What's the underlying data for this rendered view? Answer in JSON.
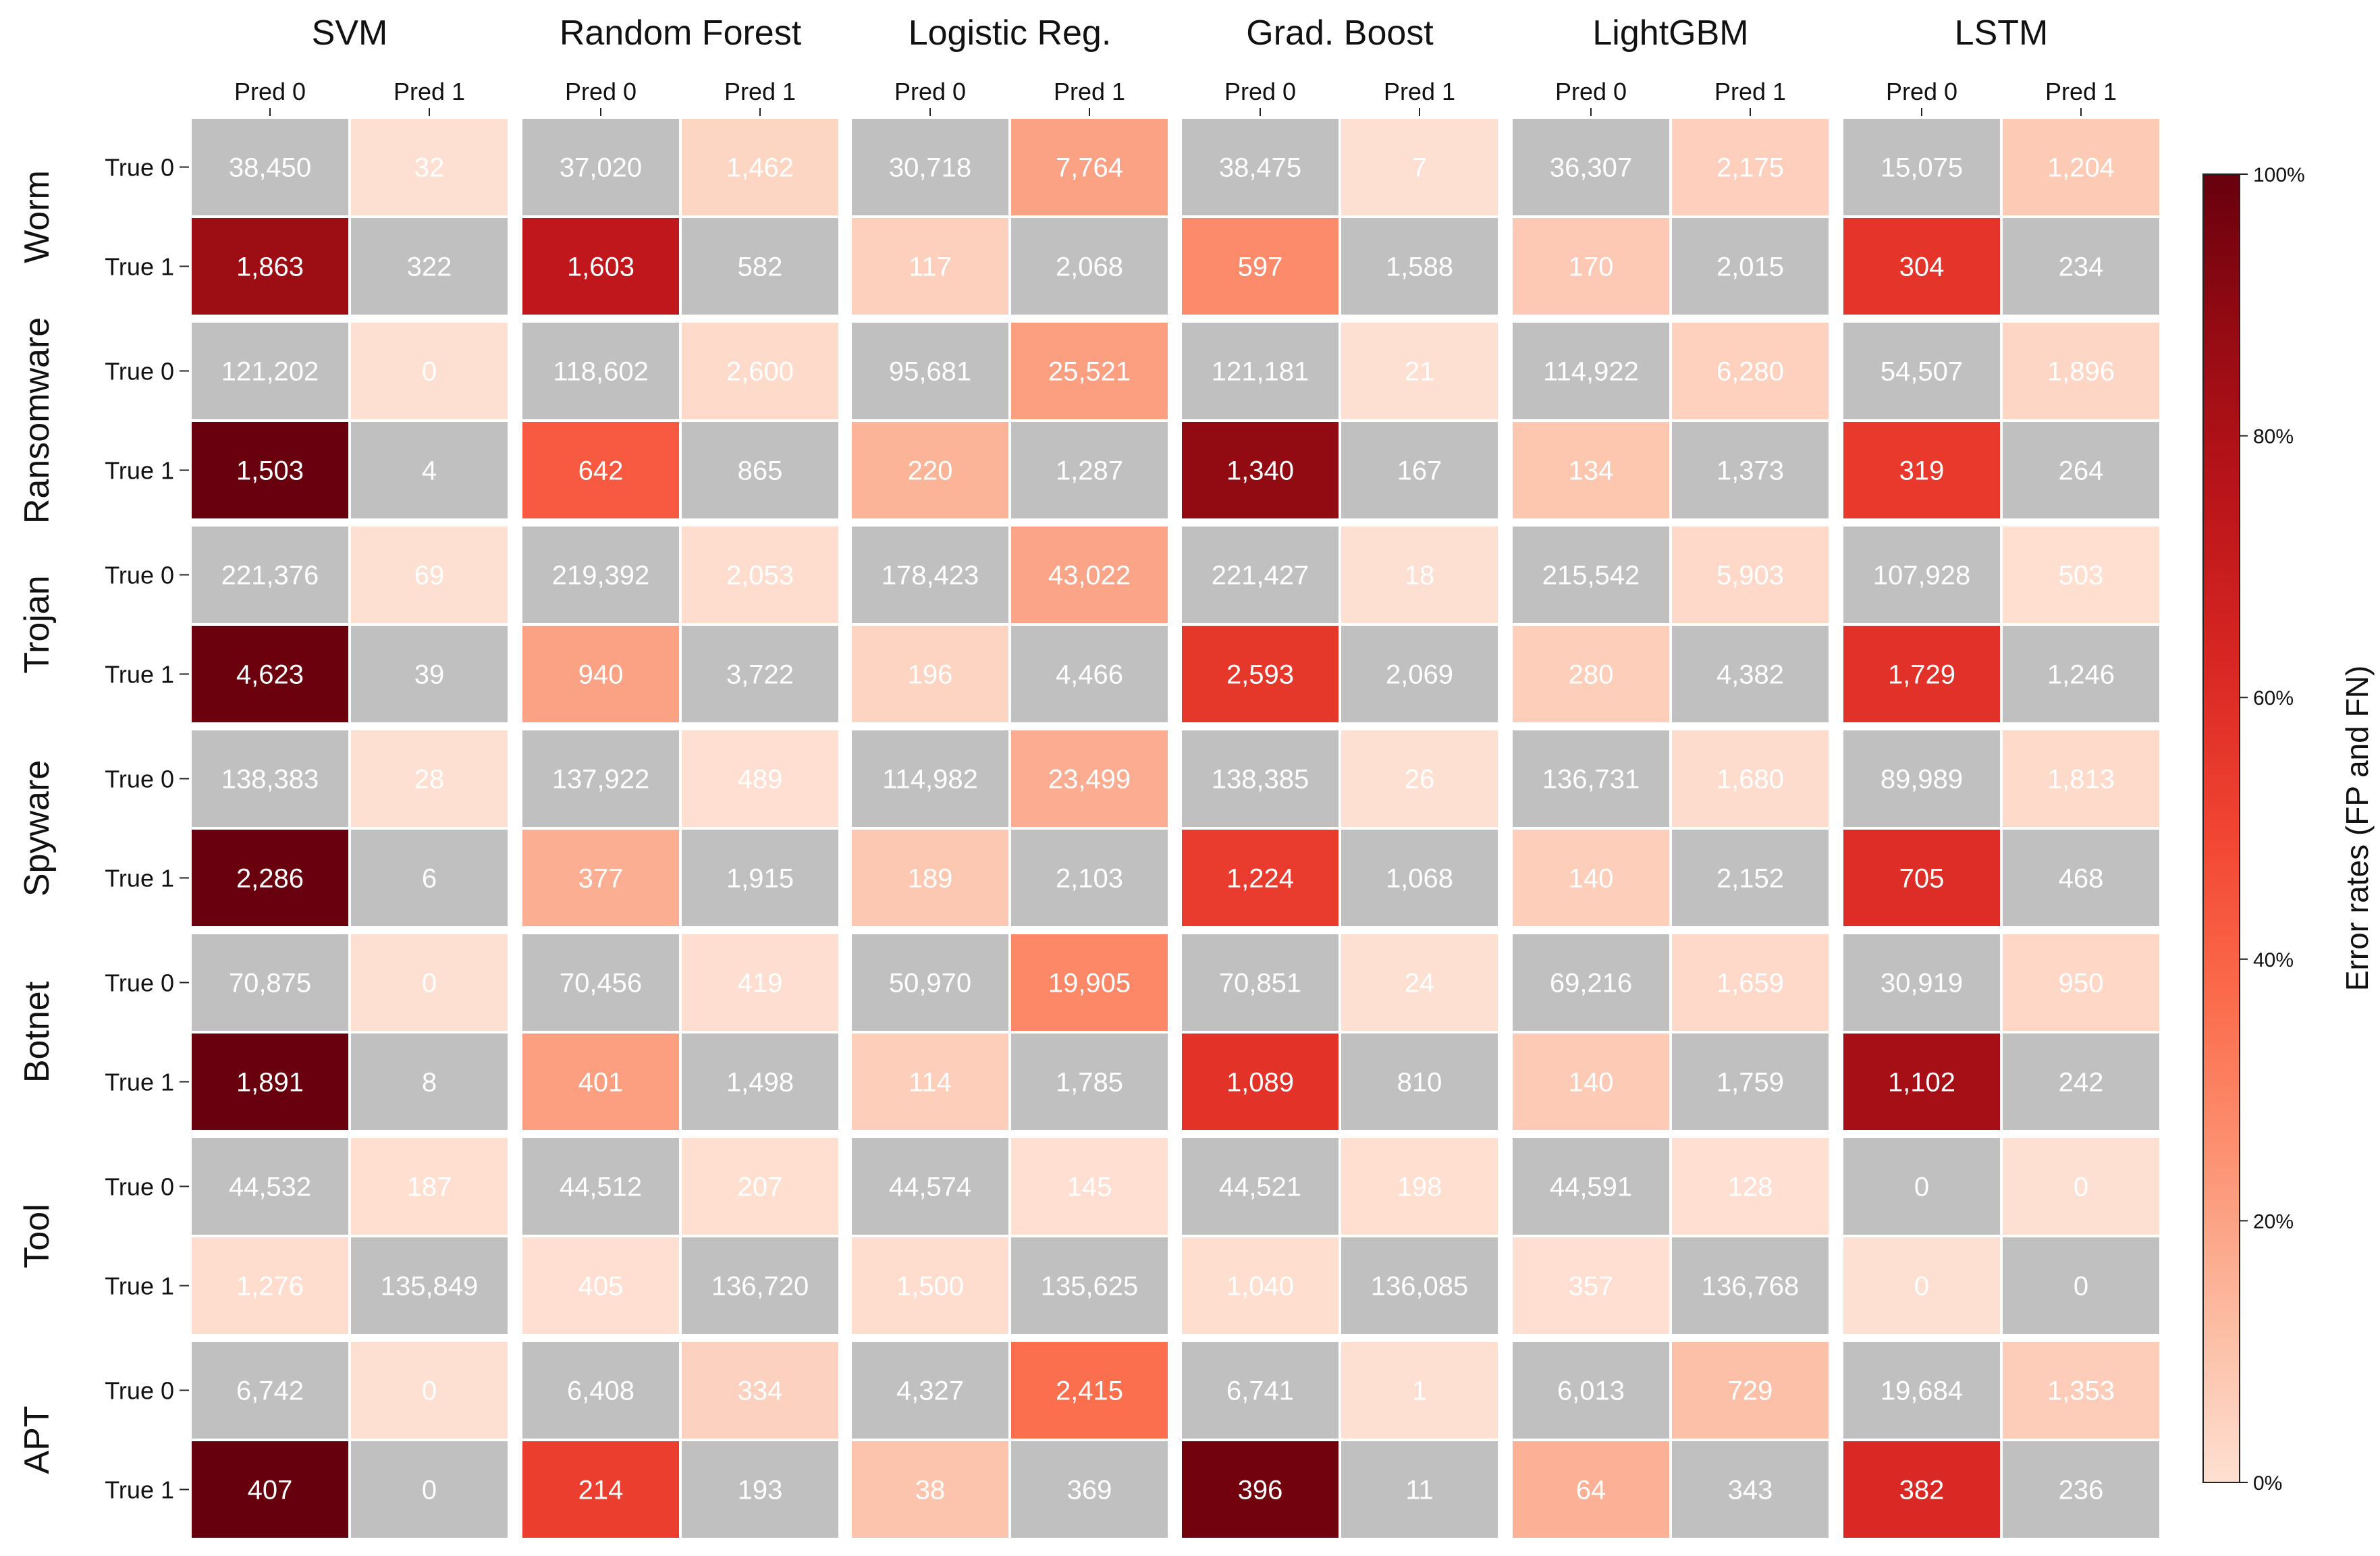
{
  "chart_data": {
    "type": "heatmap",
    "models": [
      "SVM",
      "Random Forest",
      "Logistic Reg.",
      "Grad. Boost",
      "LightGBM",
      "LSTM"
    ],
    "classes": [
      "Worm",
      "Ransomware",
      "Trojan",
      "Spyware",
      "Botnet",
      "Tool",
      "APT"
    ],
    "pred_labels": [
      "Pred 0",
      "Pred 1"
    ],
    "true_labels": [
      "True 0",
      "True 1"
    ],
    "colorbar": {
      "label": "Error rates (FP and FN)",
      "ticks": [
        "0%",
        "20%",
        "40%",
        "60%",
        "80%",
        "100%"
      ],
      "range": [
        0,
        100
      ],
      "colormap": "Reds"
    },
    "correct_cell_color": "#c0c0c0",
    "matrices": {
      "Worm": [
        [
          [
            38450,
            32
          ],
          [
            1863,
            322
          ]
        ],
        [
          [
            37020,
            1462
          ],
          [
            1603,
            582
          ]
        ],
        [
          [
            30718,
            7764
          ],
          [
            117,
            2068
          ]
        ],
        [
          [
            38475,
            7
          ],
          [
            597,
            1588
          ]
        ],
        [
          [
            36307,
            2175
          ],
          [
            170,
            2015
          ]
        ],
        [
          [
            15075,
            1204
          ],
          [
            304,
            234
          ]
        ]
      ],
      "Ransomware": [
        [
          [
            121202,
            0
          ],
          [
            1503,
            4
          ]
        ],
        [
          [
            118602,
            2600
          ],
          [
            642,
            865
          ]
        ],
        [
          [
            95681,
            25521
          ],
          [
            220,
            1287
          ]
        ],
        [
          [
            121181,
            21
          ],
          [
            1340,
            167
          ]
        ],
        [
          [
            114922,
            6280
          ],
          [
            134,
            1373
          ]
        ],
        [
          [
            54507,
            1896
          ],
          [
            319,
            264
          ]
        ]
      ],
      "Trojan": [
        [
          [
            221376,
            69
          ],
          [
            4623,
            39
          ]
        ],
        [
          [
            219392,
            2053
          ],
          [
            940,
            3722
          ]
        ],
        [
          [
            178423,
            43022
          ],
          [
            196,
            4466
          ]
        ],
        [
          [
            221427,
            18
          ],
          [
            2593,
            2069
          ]
        ],
        [
          [
            215542,
            5903
          ],
          [
            280,
            4382
          ]
        ],
        [
          [
            107928,
            503
          ],
          [
            1729,
            1246
          ]
        ]
      ],
      "Spyware": [
        [
          [
            138383,
            28
          ],
          [
            2286,
            6
          ]
        ],
        [
          [
            137922,
            489
          ],
          [
            377,
            1915
          ]
        ],
        [
          [
            114982,
            23499
          ],
          [
            189,
            2103
          ]
        ],
        [
          [
            138385,
            26
          ],
          [
            1224,
            1068
          ]
        ],
        [
          [
            136731,
            1680
          ],
          [
            140,
            2152
          ]
        ],
        [
          [
            89989,
            1813
          ],
          [
            705,
            468
          ]
        ]
      ],
      "Botnet": [
        [
          [
            70875,
            0
          ],
          [
            1891,
            8
          ]
        ],
        [
          [
            70456,
            419
          ],
          [
            401,
            1498
          ]
        ],
        [
          [
            50970,
            19905
          ],
          [
            114,
            1785
          ]
        ],
        [
          [
            70851,
            24
          ],
          [
            1089,
            810
          ]
        ],
        [
          [
            69216,
            1659
          ],
          [
            140,
            1759
          ]
        ],
        [
          [
            30919,
            950
          ],
          [
            1102,
            242
          ]
        ]
      ],
      "Tool": [
        [
          [
            44532,
            187
          ],
          [
            1276,
            135849
          ]
        ],
        [
          [
            44512,
            207
          ],
          [
            405,
            136720
          ]
        ],
        [
          [
            44574,
            145
          ],
          [
            1500,
            135625
          ]
        ],
        [
          [
            44521,
            198
          ],
          [
            1040,
            136085
          ]
        ],
        [
          [
            44591,
            128
          ],
          [
            357,
            136768
          ]
        ],
        [
          [
            0,
            0
          ],
          [
            0,
            0
          ]
        ]
      ],
      "APT": [
        [
          [
            6742,
            0
          ],
          [
            407,
            0
          ]
        ],
        [
          [
            6408,
            334
          ],
          [
            214,
            193
          ]
        ],
        [
          [
            4327,
            2415
          ],
          [
            38,
            369
          ]
        ],
        [
          [
            6741,
            1
          ],
          [
            396,
            11
          ]
        ],
        [
          [
            6013,
            729
          ],
          [
            64,
            343
          ]
        ],
        [
          [
            19684,
            1353
          ],
          [
            382,
            236
          ]
        ]
      ]
    }
  }
}
